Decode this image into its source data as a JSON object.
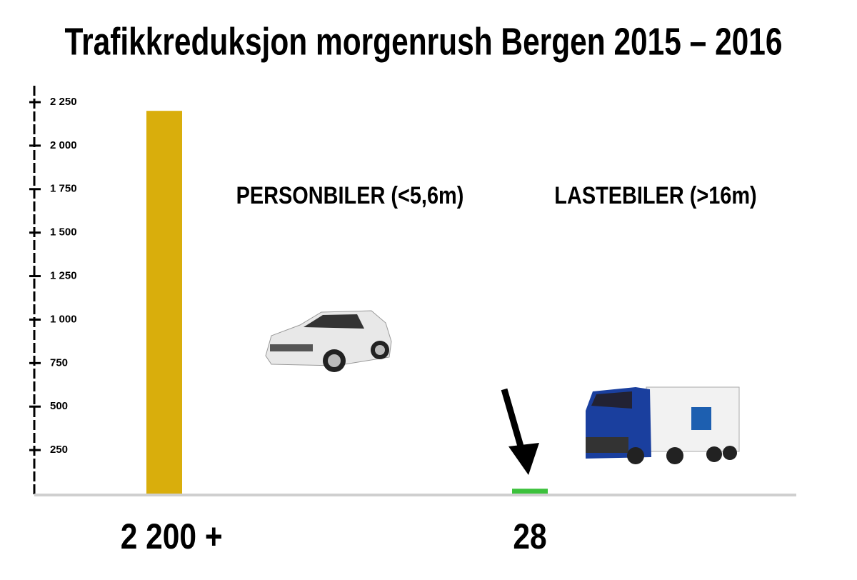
{
  "chart_data": {
    "type": "bar",
    "title": "Trafikkreduksjon morgenrush Bergen 2015 – 2016",
    "categories": [
      "PERSONBILER (<5,6m)",
      "LASTEBILER (>16m)"
    ],
    "values": [
      2200,
      28
    ],
    "value_labels": [
      "2 200 +",
      "28"
    ],
    "colors": [
      "#d9ae0c",
      "#3cc13c"
    ],
    "ylim": [
      0,
      2250
    ],
    "yticks": [
      250,
      500,
      750,
      {
        "value": 1000,
        "label": "1 000"
      },
      {
        "value": 1250,
        "label": "1 250"
      },
      {
        "value": 1500,
        "label": "1 500"
      },
      {
        "value": 1750,
        "label": "1 750"
      },
      {
        "value": 2000,
        "label": "2 000"
      },
      {
        "value": 2250,
        "label": "2 250"
      }
    ]
  }
}
